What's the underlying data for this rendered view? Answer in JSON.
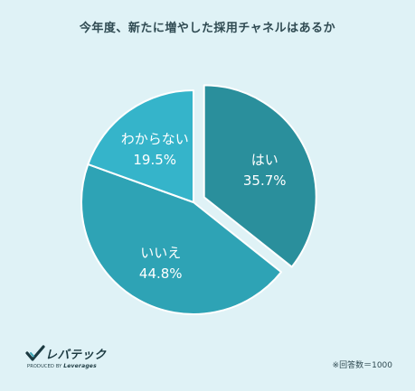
{
  "title": "今年度、新たに増やした採用チャネルはあるか",
  "chart_data": {
    "type": "pie",
    "slices": [
      {
        "name": "はい",
        "value": 35.7,
        "value_label": "35.7%",
        "color": "#2a8f9c",
        "exploded": true
      },
      {
        "name": "いいえ",
        "value": 44.8,
        "value_label": "44.8%",
        "color": "#2ea3b5",
        "exploded": false
      },
      {
        "name": "わからない",
        "value": 19.5,
        "value_label": "19.5%",
        "color": "#35b4ca",
        "exploded": false
      }
    ]
  },
  "logo": {
    "name": "レバテック",
    "tagline_prefix": "PRODUCED BY",
    "tagline_brand": "Leverages"
  },
  "note": "※回答数＝1000"
}
